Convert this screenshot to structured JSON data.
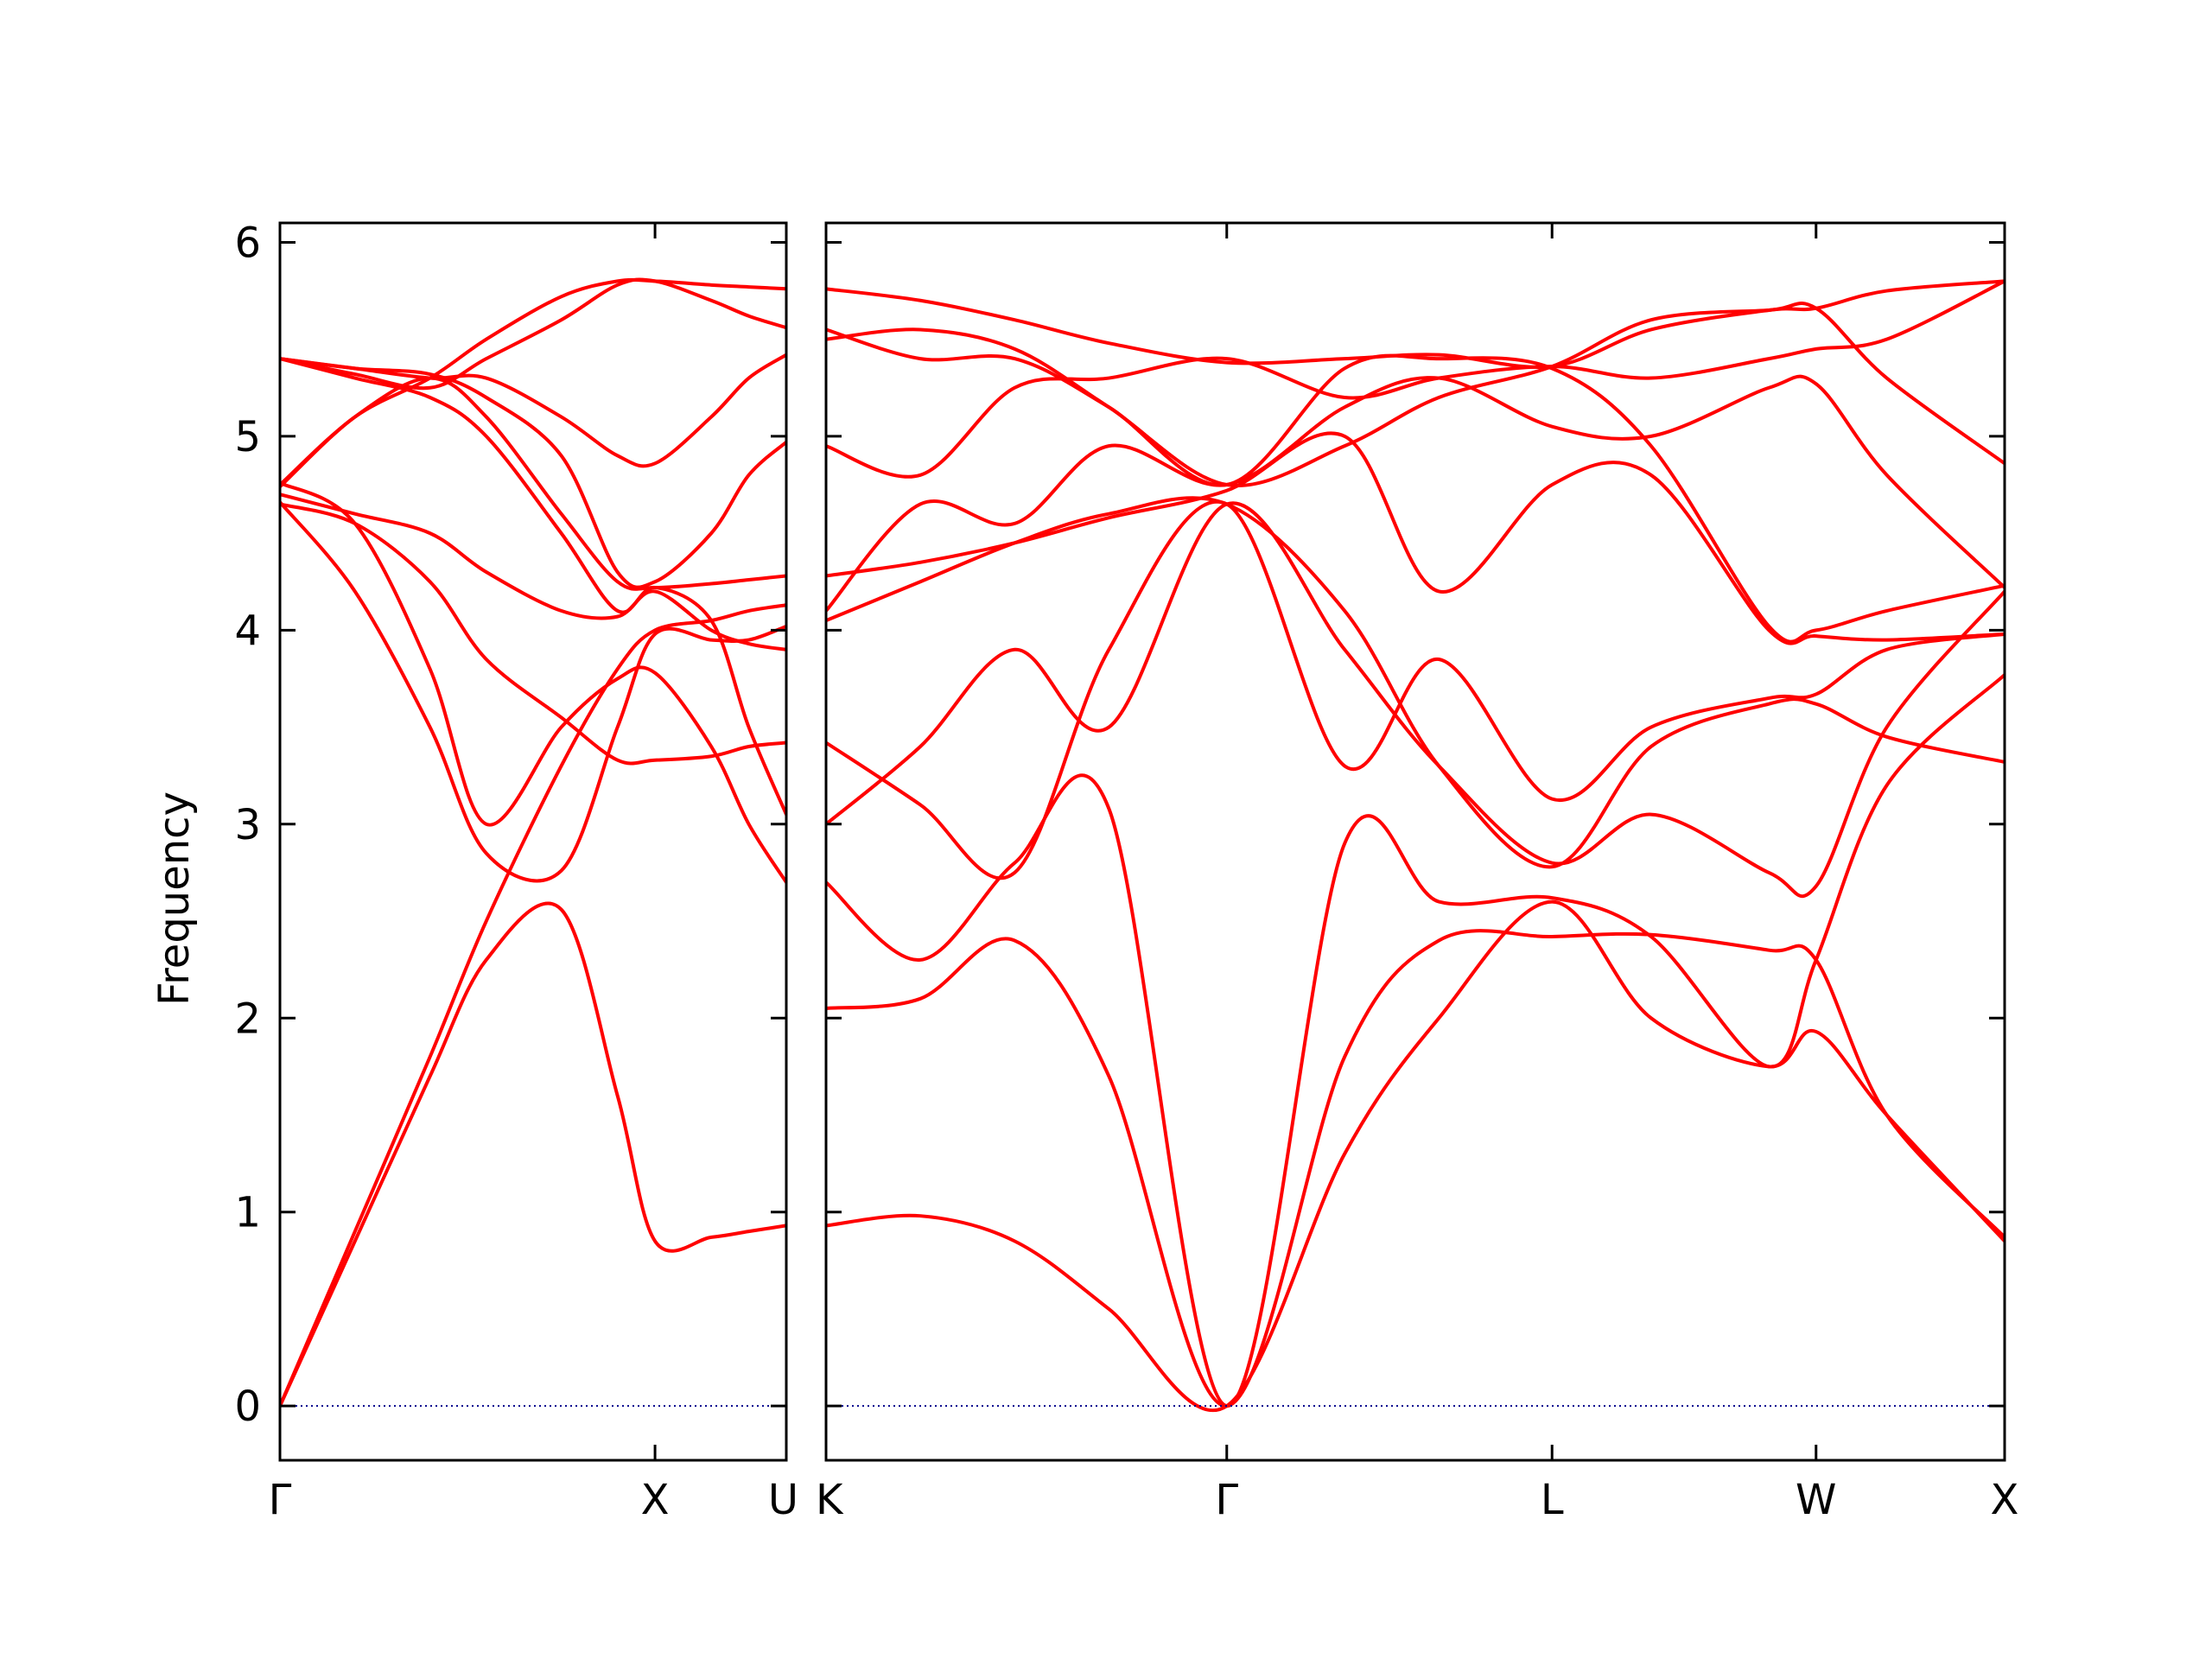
{
  "chart_data": {
    "type": "line",
    "title": "",
    "xlabel": "",
    "ylabel": "Frequency",
    "ylim": [
      -0.28,
      6.1
    ],
    "yticks": [
      0,
      1,
      2,
      3,
      4,
      5,
      6
    ],
    "ytick_labels": [
      "0",
      "1",
      "2",
      "3",
      "4",
      "5",
      "6"
    ],
    "grid": false,
    "legend": "none",
    "line_color": "#ff0000",
    "zero_line_color": "#00008b",
    "panels": [
      {
        "path": [
          "Γ",
          "X",
          "U"
        ],
        "xlim": [
          0,
          1.35
        ],
        "xticks": [
          {
            "x": 0,
            "label": "Γ"
          },
          {
            "x": 1.0,
            "label": "X"
          },
          {
            "x": 1.35,
            "label": "U"
          }
        ],
        "series": [
          {
            "x": [
              0,
              0.2,
              0.4,
              0.55,
              0.75,
              0.9,
              1.0,
              1.15,
              1.25,
              1.35
            ],
            "y": [
              0,
              0.85,
              1.7,
              2.3,
              2.56,
              1.6,
              0.85,
              0.87,
              0.9,
              0.93
            ]
          },
          {
            "x": [
              0,
              0.2,
              0.4,
              0.55,
              0.75,
              0.9,
              1.0,
              1.15,
              1.25,
              1.35
            ],
            "y": [
              0,
              0.9,
              1.8,
              2.5,
              3.3,
              3.8,
              4.0,
              4.05,
              4.1,
              4.13
            ]
          },
          {
            "x": [
              0,
              0.2,
              0.4,
              0.55,
              0.75,
              0.9,
              1.0,
              1.15,
              1.25,
              1.35
            ],
            "y": [
              4.66,
              4.2,
              3.5,
              2.85,
              2.76,
              3.5,
              3.98,
              3.95,
              3.95,
              4.02
            ]
          },
          {
            "x": [
              0,
              0.2,
              0.4,
              0.55,
              0.75,
              0.9,
              1.0,
              1.15,
              1.25,
              1.35
            ],
            "y": [
              4.76,
              4.55,
              3.8,
              3.0,
              3.5,
              3.75,
              3.78,
              3.4,
              3.0,
              2.7
            ]
          },
          {
            "x": [
              0,
              0.2,
              0.4,
              0.55,
              0.75,
              0.9,
              1.0,
              1.15,
              1.25,
              1.35
            ],
            "y": [
              4.65,
              4.55,
              4.25,
              3.85,
              3.55,
              3.33,
              3.33,
              3.35,
              3.4,
              3.42
            ]
          },
          {
            "x": [
              0,
              0.2,
              0.4,
              0.55,
              0.75,
              0.9,
              1.0,
              1.15,
              1.25,
              1.35
            ],
            "y": [
              4.74,
              5.1,
              5.3,
              5.1,
              4.6,
              4.25,
              4.22,
              4.24,
              4.26,
              4.28
            ]
          },
          {
            "x": [
              0,
              0.2,
              0.4,
              0.55,
              0.75,
              0.9,
              1.0,
              1.15,
              1.25,
              1.35
            ],
            "y": [
              4.75,
              5.1,
              5.3,
              5.5,
              5.72,
              5.8,
              5.8,
              5.78,
              5.77,
              5.76
            ]
          },
          {
            "x": [
              0,
              0.2,
              0.4,
              0.55,
              0.75,
              0.9,
              1.0,
              1.15,
              1.25,
              1.35
            ],
            "y": [
              5.4,
              5.35,
              5.32,
              5.2,
              4.9,
              4.3,
              4.25,
              4.5,
              4.8,
              4.97
            ]
          },
          {
            "x": [
              0,
              0.2,
              0.4,
              0.55,
              0.75,
              0.9,
              1.0,
              1.15,
              1.25,
              1.35
            ],
            "y": [
              5.4,
              5.35,
              5.3,
              5.3,
              5.1,
              4.9,
              4.86,
              5.1,
              5.3,
              5.42
            ]
          },
          {
            "x": [
              0,
              0.2,
              0.4,
              0.55,
              0.75,
              0.9,
              1.0,
              1.15,
              1.25,
              1.35
            ],
            "y": [
              5.4,
              5.3,
              5.2,
              5.0,
              4.5,
              4.1,
              4.22,
              4.05,
              3.5,
              3.05
            ]
          },
          {
            "x": [
              0,
              0.2,
              0.4,
              0.55,
              0.75,
              0.9,
              1.0,
              1.15,
              1.25,
              1.35
            ],
            "y": [
              4.7,
              4.6,
              4.5,
              4.3,
              4.1,
              4.07,
              4.2,
              4.0,
              3.93,
              3.9
            ]
          },
          {
            "x": [
              0,
              0.2,
              0.4,
              0.55,
              0.75,
              0.9,
              1.0,
              1.15,
              1.25,
              1.35
            ],
            "y": [
              5.4,
              5.32,
              5.25,
              5.4,
              5.6,
              5.78,
              5.8,
              5.7,
              5.62,
              5.56
            ]
          },
          {
            "x": [
              0,
              0.5,
              1.0,
              1.35
            ],
            "y": [
              0,
              0,
              0,
              0
            ],
            "dotted": true
          }
        ]
      },
      {
        "path": [
          "K",
          "Γ",
          "L",
          "W",
          "X"
        ],
        "xlim": [
          0,
          5.0
        ],
        "xticks": [
          {
            "x": 0,
            "label": "K"
          },
          {
            "x": 1.7,
            "label": "Γ"
          },
          {
            "x": 3.08,
            "label": "L"
          },
          {
            "x": 4.2,
            "label": "W"
          },
          {
            "x": 5.0,
            "label": "X"
          }
        ],
        "series": [
          {
            "x": [
              0,
              0.4,
              0.8,
              1.2,
              1.7,
              2.2,
              2.6,
              3.08,
              3.5,
              4.0,
              4.2,
              4.5,
              5.0
            ],
            "y": [
              0.93,
              0.98,
              0.85,
              0.5,
              0,
              1.3,
              2.0,
              2.6,
              2.0,
              1.75,
              1.93,
              1.5,
              0.85
            ]
          },
          {
            "x": [
              0,
              0.4,
              0.8,
              1.2,
              1.7,
              2.2,
              2.6,
              3.08,
              3.5,
              4.0,
              4.2,
              4.5,
              5.0
            ],
            "y": [
              2.05,
              2.1,
              2.4,
              1.7,
              0,
              1.8,
              2.4,
              2.42,
              2.43,
              2.35,
              2.3,
              1.5,
              0.87
            ]
          },
          {
            "x": [
              0,
              0.4,
              0.8,
              1.2,
              1.7,
              2.2,
              2.6,
              3.08,
              3.5,
              4.0,
              4.2,
              4.5,
              5.0
            ],
            "y": [
              2.7,
              2.3,
              2.8,
              3.08,
              0,
              2.9,
              2.6,
              2.62,
              2.42,
              1.75,
              2.3,
              3.2,
              3.77
            ]
          },
          {
            "x": [
              0,
              0.4,
              0.8,
              1.2,
              1.7,
              2.2,
              2.6,
              3.08,
              3.5,
              4.0,
              4.2,
              4.5,
              5.0
            ],
            "y": [
              3.42,
              3.1,
              2.75,
              3.9,
              4.65,
              3.3,
              3.85,
              3.13,
              3.5,
              3.65,
              3.67,
              3.9,
              3.98
            ]
          },
          {
            "x": [
              0,
              0.4,
              0.8,
              1.2,
              1.7,
              2.2,
              2.6,
              3.08,
              3.5,
              4.0,
              4.2,
              4.5,
              5.0
            ],
            "y": [
              3.0,
              3.4,
              3.9,
              3.5,
              4.65,
              3.9,
              3.3,
              2.8,
              3.05,
              2.75,
              2.68,
              3.5,
              4.2
            ]
          },
          {
            "x": [
              0,
              0.4,
              0.8,
              1.2,
              1.7,
              2.2,
              2.6,
              3.08,
              3.5,
              4.0,
              4.2,
              4.5,
              5.0
            ],
            "y": [
              4.05,
              4.25,
              4.45,
              4.6,
              4.65,
              4.1,
              3.3,
              2.78,
              3.4,
              3.62,
              3.62,
              3.45,
              3.32
            ]
          },
          {
            "x": [
              0,
              0.4,
              0.8,
              1.2,
              1.7,
              2.2,
              2.6,
              3.08,
              3.5,
              4.0,
              4.2,
              4.5,
              5.0
            ],
            "y": [
              4.28,
              4.35,
              4.45,
              4.58,
              4.72,
              5.0,
              4.2,
              4.75,
              4.8,
              4.0,
              3.97,
              3.95,
              3.98
            ]
          },
          {
            "x": [
              0,
              0.4,
              0.8,
              1.2,
              1.7,
              2.2,
              2.6,
              3.08,
              3.5,
              4.0,
              4.2,
              4.5,
              5.0
            ],
            "y": [
              4.1,
              4.65,
              4.55,
              4.95,
              4.75,
              5.15,
              5.3,
              5.05,
              5.0,
              5.25,
              5.27,
              4.8,
              4.22
            ]
          },
          {
            "x": [
              0,
              0.4,
              0.8,
              1.2,
              1.7,
              2.2,
              2.6,
              3.08,
              3.5,
              4.0,
              4.2,
              4.5,
              5.0
            ],
            "y": [
              4.95,
              4.8,
              5.25,
              5.3,
              5.4,
              5.2,
              5.3,
              5.36,
              5.3,
              5.4,
              5.45,
              5.5,
              5.8
            ]
          },
          {
            "x": [
              0,
              0.4,
              0.8,
              1.2,
              1.7,
              2.2,
              2.6,
              3.08,
              3.5,
              4.0,
              4.2,
              4.5,
              5.0
            ],
            "y": [
              5.55,
              5.4,
              5.4,
              5.15,
              4.75,
              5.35,
              5.4,
              5.35,
              4.95,
              4.02,
              4.0,
              4.1,
              4.23
            ]
          },
          {
            "x": [
              0,
              0.4,
              0.8,
              1.2,
              1.7,
              2.2,
              2.6,
              3.08,
              3.5,
              4.0,
              4.2,
              4.5,
              5.0
            ],
            "y": [
              5.5,
              5.55,
              5.45,
              5.15,
              4.75,
              4.95,
              5.2,
              5.36,
              5.6,
              5.65,
              5.66,
              5.3,
              4.86
            ]
          },
          {
            "x": [
              0,
              0.4,
              0.8,
              1.2,
              1.7,
              2.2,
              2.6,
              3.08,
              3.5,
              4.0,
              4.2,
              4.5,
              5.0
            ],
            "y": [
              5.76,
              5.7,
              5.6,
              5.48,
              5.38,
              5.4,
              5.42,
              5.36,
              5.55,
              5.65,
              5.66,
              5.75,
              5.8
            ]
          },
          {
            "x": [
              0,
              1.7,
              3.08,
              4.2,
              5.0
            ],
            "y": [
              0,
              0,
              0,
              0,
              0
            ],
            "dotted": true
          }
        ]
      }
    ]
  }
}
